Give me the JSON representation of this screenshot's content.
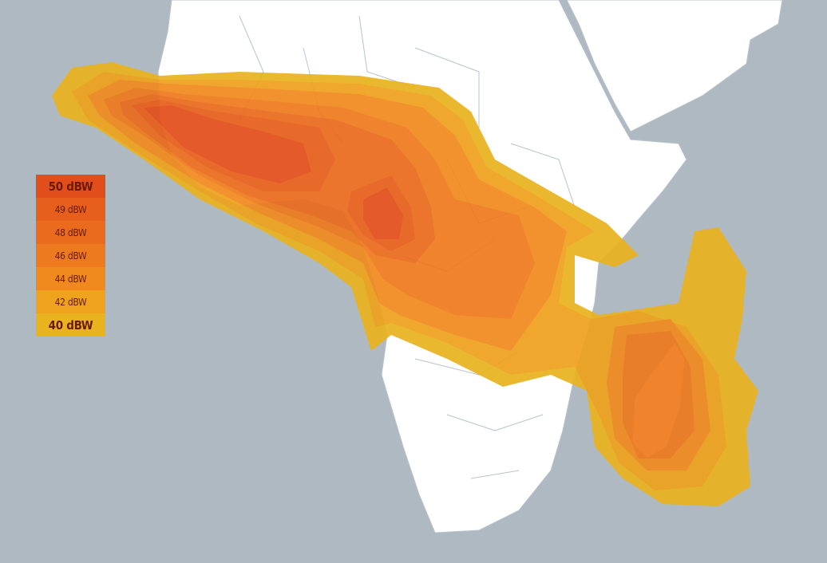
{
  "legend": {
    "items": [
      {
        "label": "50 dBW",
        "color": "#e24e1b"
      },
      {
        "label": "49 dBW",
        "color": "#e65f1c"
      },
      {
        "label": "48 dBW",
        "color": "#ea6b1e"
      },
      {
        "label": "46 dBW",
        "color": "#ee7a1f"
      },
      {
        "label": "44 dBW",
        "color": "#f08a1f"
      },
      {
        "label": "42 dBW",
        "color": "#eea21e"
      },
      {
        "label": "40 dBW",
        "color": "#e9b320"
      }
    ]
  },
  "colors": {
    "ocean": "#aeb9c2",
    "land": "#ffffff",
    "borders": "#b9c3cb"
  }
}
